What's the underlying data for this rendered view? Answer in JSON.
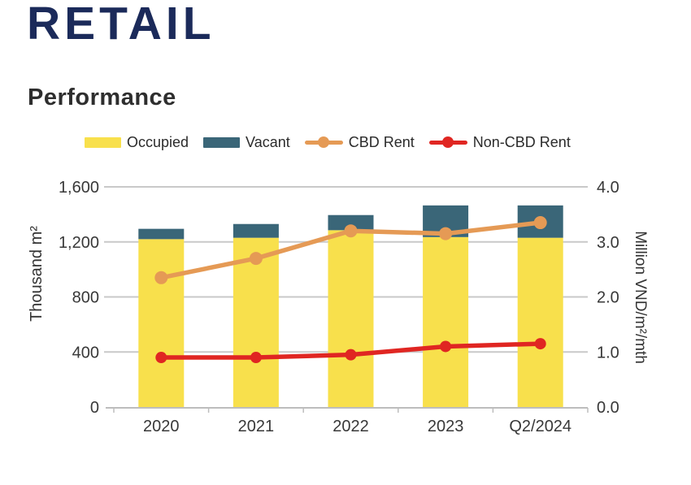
{
  "page": {
    "title": "RETAIL",
    "subtitle": "Performance"
  },
  "legend": {
    "items": [
      {
        "label": "Occupied",
        "type": "bar",
        "color": "#F8E04C"
      },
      {
        "label": "Vacant",
        "type": "bar",
        "color": "#3A6678"
      },
      {
        "label": "CBD Rent",
        "type": "line",
        "color": "#E59A55"
      },
      {
        "label": "Non-CBD Rent",
        "type": "line",
        "color": "#E02622"
      }
    ]
  },
  "chart_data": {
    "type": "combo-stacked-bar-line",
    "categories": [
      "2020",
      "2021",
      "2022",
      "2023",
      "Q2/2024"
    ],
    "bar_series": [
      {
        "name": "Occupied",
        "axis": "left",
        "color": "#F8E04C",
        "values": [
          1220,
          1230,
          1285,
          1235,
          1230
        ]
      },
      {
        "name": "Vacant",
        "axis": "left",
        "color": "#3A6678",
        "values": [
          75,
          100,
          110,
          230,
          235
        ]
      }
    ],
    "line_series": [
      {
        "name": "CBD Rent",
        "axis": "right",
        "color": "#E59A55",
        "values": [
          2.35,
          2.7,
          3.2,
          3.15,
          3.35
        ]
      },
      {
        "name": "Non-CBD Rent",
        "axis": "right",
        "color": "#E02622",
        "values": [
          0.9,
          0.9,
          0.95,
          1.1,
          1.15
        ]
      }
    ],
    "y_left": {
      "title": "Thousand m²",
      "tick_labels": [
        "0",
        "400",
        "800",
        "1,200",
        "1,600"
      ],
      "tick_values": [
        0,
        400,
        800,
        1200,
        1600
      ],
      "min": 0,
      "max": 1600
    },
    "y_right": {
      "title": "Million VND/m²/mth",
      "tick_labels": [
        "0.0",
        "1.0",
        "2.0",
        "3.0",
        "4.0"
      ],
      "tick_values": [
        0,
        1,
        2,
        3,
        4
      ],
      "min": 0,
      "max": 4
    },
    "stacked": true,
    "grid": true,
    "legend_position": "top"
  },
  "colors": {
    "title": "#1B2A5A",
    "subtitle": "#2E2E2E",
    "axis_text": "#383838",
    "gridline": "#C9C9C9",
    "axis_line": "#BDBDBD"
  }
}
